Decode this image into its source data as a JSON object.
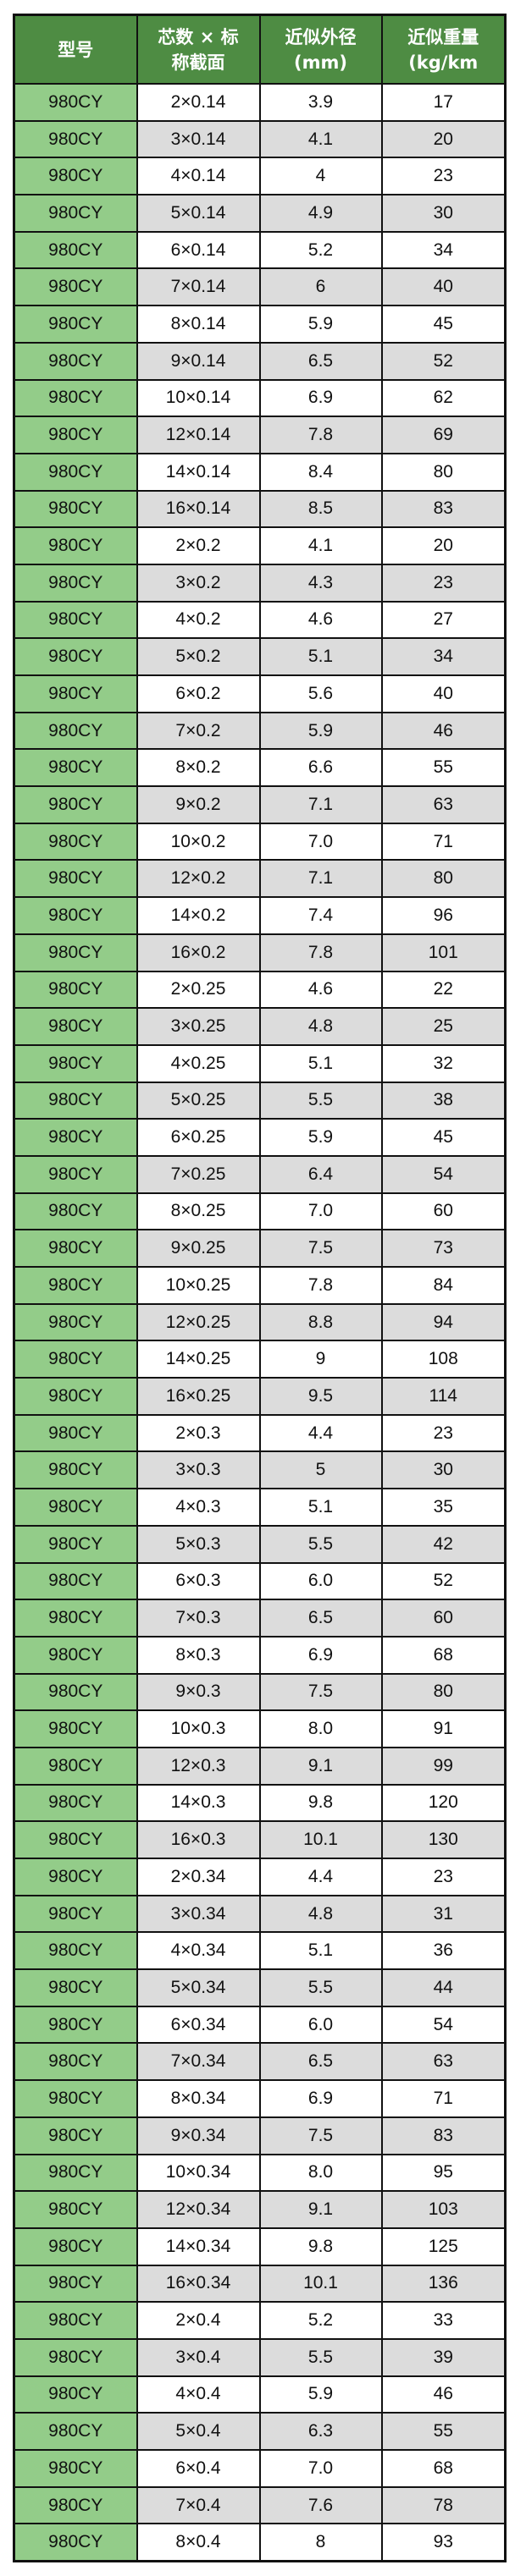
{
  "colors": {
    "header_bg": "#4e8c43",
    "model_col_bg": "#93cc89",
    "alt_row_bg": "#dcdcdc"
  },
  "table": {
    "headers": [
      {
        "line1": "型号",
        "line2": ""
      },
      {
        "line1": "芯数 × 标",
        "line2": "称截面"
      },
      {
        "line1": "近似外径",
        "line2": "(mm)"
      },
      {
        "line1": "近似重量",
        "line2": "(kg/km"
      }
    ],
    "rows": [
      [
        "980CY",
        "2×0.14",
        "3.9",
        "17"
      ],
      [
        "980CY",
        "3×0.14",
        "4.1",
        "20"
      ],
      [
        "980CY",
        "4×0.14",
        "4",
        "23"
      ],
      [
        "980CY",
        "5×0.14",
        "4.9",
        "30"
      ],
      [
        "980CY",
        "6×0.14",
        "5.2",
        "34"
      ],
      [
        "980CY",
        "7×0.14",
        "6",
        "40"
      ],
      [
        "980CY",
        "8×0.14",
        "5.9",
        "45"
      ],
      [
        "980CY",
        "9×0.14",
        "6.5",
        "52"
      ],
      [
        "980CY",
        "10×0.14",
        "6.9",
        "62"
      ],
      [
        "980CY",
        "12×0.14",
        "7.8",
        "69"
      ],
      [
        "980CY",
        "14×0.14",
        "8.4",
        "80"
      ],
      [
        "980CY",
        "16×0.14",
        "8.5",
        "83"
      ],
      [
        "980CY",
        "2×0.2",
        "4.1",
        "20"
      ],
      [
        "980CY",
        "3×0.2",
        "4.3",
        "23"
      ],
      [
        "980CY",
        "4×0.2",
        "4.6",
        "27"
      ],
      [
        "980CY",
        "5×0.2",
        "5.1",
        "34"
      ],
      [
        "980CY",
        "6×0.2",
        "5.6",
        "40"
      ],
      [
        "980CY",
        "7×0.2",
        "5.9",
        "46"
      ],
      [
        "980CY",
        "8×0.2",
        "6.6",
        "55"
      ],
      [
        "980CY",
        "9×0.2",
        "7.1",
        "63"
      ],
      [
        "980CY",
        "10×0.2",
        "7.0",
        "71"
      ],
      [
        "980CY",
        "12×0.2",
        "7.1",
        "80"
      ],
      [
        "980CY",
        "14×0.2",
        "7.4",
        "96"
      ],
      [
        "980CY",
        "16×0.2",
        "7.8",
        "101"
      ],
      [
        "980CY",
        "2×0.25",
        "4.6",
        "22"
      ],
      [
        "980CY",
        "3×0.25",
        "4.8",
        "25"
      ],
      [
        "980CY",
        "4×0.25",
        "5.1",
        "32"
      ],
      [
        "980CY",
        "5×0.25",
        "5.5",
        "38"
      ],
      [
        "980CY",
        "6×0.25",
        "5.9",
        "45"
      ],
      [
        "980CY",
        "7×0.25",
        "6.4",
        "54"
      ],
      [
        "980CY",
        "8×0.25",
        "7.0",
        "60"
      ],
      [
        "980CY",
        "9×0.25",
        "7.5",
        "73"
      ],
      [
        "980CY",
        "10×0.25",
        "7.8",
        "84"
      ],
      [
        "980CY",
        "12×0.25",
        "8.8",
        "94"
      ],
      [
        "980CY",
        "14×0.25",
        "9",
        "108"
      ],
      [
        "980CY",
        "16×0.25",
        "9.5",
        "114"
      ],
      [
        "980CY",
        "2×0.3",
        "4.4",
        "23"
      ],
      [
        "980CY",
        "3×0.3",
        "5",
        "30"
      ],
      [
        "980CY",
        "4×0.3",
        "5.1",
        "35"
      ],
      [
        "980CY",
        "5×0.3",
        "5.5",
        "42"
      ],
      [
        "980CY",
        "6×0.3",
        "6.0",
        "52"
      ],
      [
        "980CY",
        "7×0.3",
        "6.5",
        "60"
      ],
      [
        "980CY",
        "8×0.3",
        "6.9",
        "68"
      ],
      [
        "980CY",
        "9×0.3",
        "7.5",
        "80"
      ],
      [
        "980CY",
        "10×0.3",
        "8.0",
        "91"
      ],
      [
        "980CY",
        "12×0.3",
        "9.1",
        "99"
      ],
      [
        "980CY",
        "14×0.3",
        "9.8",
        "120"
      ],
      [
        "980CY",
        "16×0.3",
        "10.1",
        "130"
      ],
      [
        "980CY",
        "2×0.34",
        "4.4",
        "23"
      ],
      [
        "980CY",
        "3×0.34",
        "4.8",
        "31"
      ],
      [
        "980CY",
        "4×0.34",
        "5.1",
        "36"
      ],
      [
        "980CY",
        "5×0.34",
        "5.5",
        "44"
      ],
      [
        "980CY",
        "6×0.34",
        "6.0",
        "54"
      ],
      [
        "980CY",
        "7×0.34",
        "6.5",
        "63"
      ],
      [
        "980CY",
        "8×0.34",
        "6.9",
        "71"
      ],
      [
        "980CY",
        "9×0.34",
        "7.5",
        "83"
      ],
      [
        "980CY",
        "10×0.34",
        "8.0",
        "95"
      ],
      [
        "980CY",
        "12×0.34",
        "9.1",
        "103"
      ],
      [
        "980CY",
        "14×0.34",
        "9.8",
        "125"
      ],
      [
        "980CY",
        "16×0.34",
        "10.1",
        "136"
      ],
      [
        "980CY",
        "2×0.4",
        "5.2",
        "33"
      ],
      [
        "980CY",
        "3×0.4",
        "5.5",
        "39"
      ],
      [
        "980CY",
        "4×0.4",
        "5.9",
        "46"
      ],
      [
        "980CY",
        "5×0.4",
        "6.3",
        "55"
      ],
      [
        "980CY",
        "6×0.4",
        "7.0",
        "68"
      ],
      [
        "980CY",
        "7×0.4",
        "7.6",
        "78"
      ],
      [
        "980CY",
        "8×0.4",
        "8",
        "93"
      ]
    ]
  }
}
